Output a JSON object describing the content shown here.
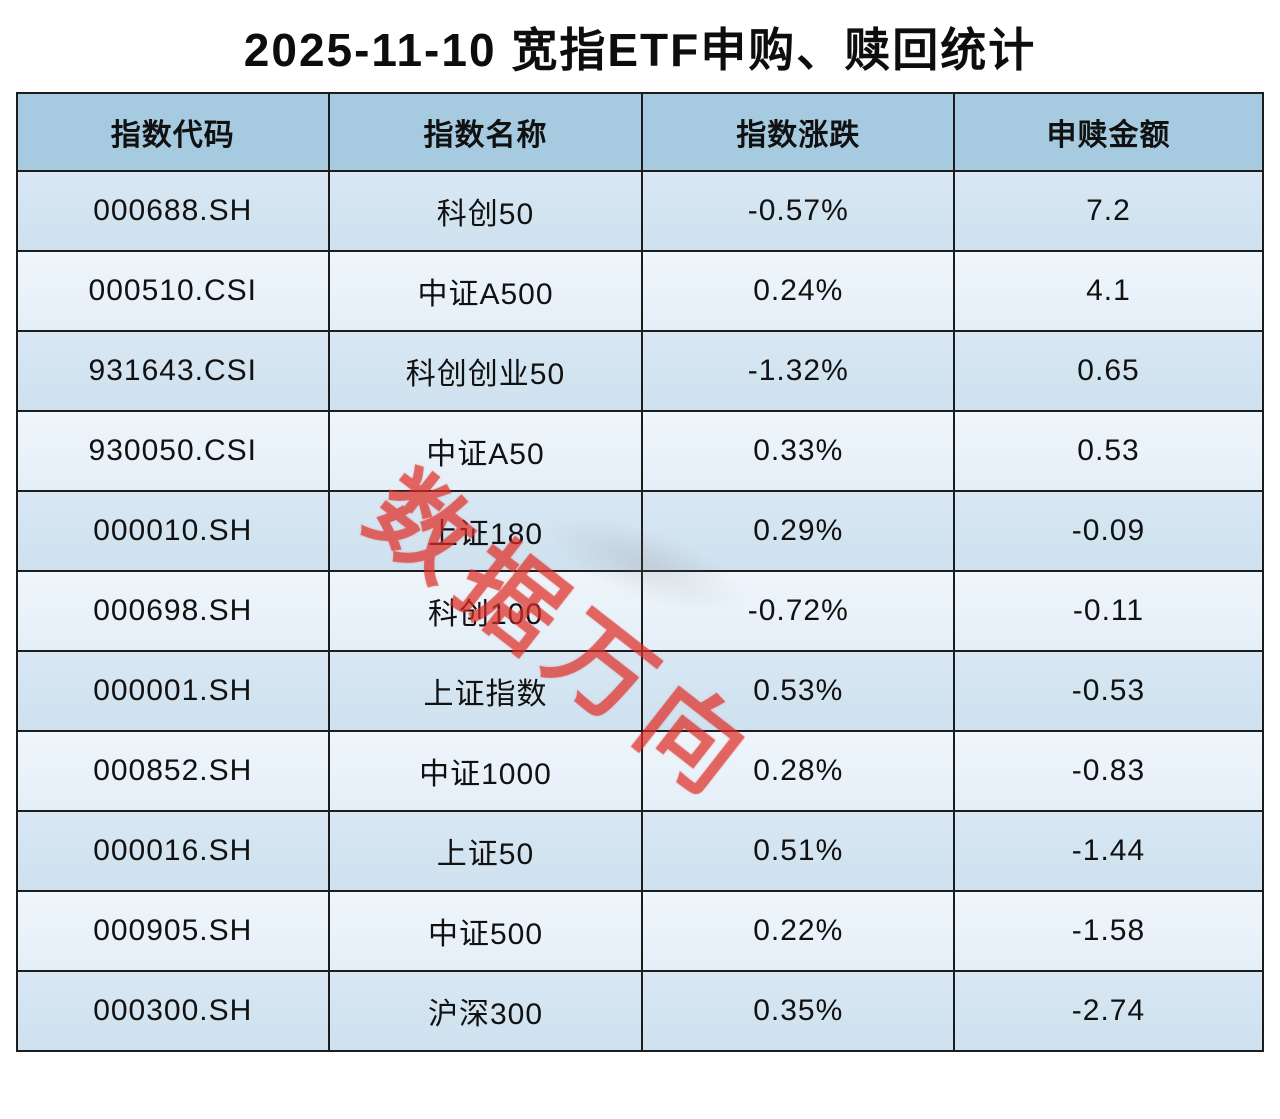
{
  "title": "2025-11-10 宽指ETF申购、赎回统计",
  "watermark": {
    "text": "数据万向",
    "color": "#de2c24"
  },
  "colors": {
    "header_bg": "#a6cbe1",
    "row_dark": "#cfe1ef",
    "row_light": "#e9f3fa",
    "border": "#1c1c1c",
    "watermark_red": "#de2c24"
  },
  "table": {
    "headers": [
      "指数代码",
      "指数名称",
      "指数涨跌",
      "申赎金额"
    ],
    "rows": [
      [
        "000688.SH",
        "科创50",
        "-0.57%",
        "7.2"
      ],
      [
        "000510.CSI",
        "中证A500",
        "0.24%",
        "4.1"
      ],
      [
        "931643.CSI",
        "科创创业50",
        "-1.32%",
        "0.65"
      ],
      [
        "930050.CSI",
        "中证A50",
        "0.33%",
        "0.53"
      ],
      [
        "000010.SH",
        "上证180",
        "0.29%",
        "-0.09"
      ],
      [
        "000698.SH",
        "科创100",
        "-0.72%",
        "-0.11"
      ],
      [
        "000001.SH",
        "上证指数",
        "0.53%",
        "-0.53"
      ],
      [
        "000852.SH",
        "中证1000",
        "0.28%",
        "-0.83"
      ],
      [
        "000016.SH",
        "上证50",
        "0.51%",
        "-1.44"
      ],
      [
        "000905.SH",
        "中证500",
        "0.22%",
        "-1.58"
      ],
      [
        "000300.SH",
        "沪深300",
        "0.35%",
        "-2.74"
      ]
    ]
  },
  "chart_data": {
    "type": "table",
    "title": "2025-11-10 宽指ETF申购、赎回统计",
    "columns": [
      "指数代码",
      "指数名称",
      "指数涨跌",
      "申赎金额"
    ],
    "rows": [
      {
        "code": "000688.SH",
        "name": "科创50",
        "change_pct": -0.57,
        "net_flow": 7.2
      },
      {
        "code": "000510.CSI",
        "name": "中证A500",
        "change_pct": 0.24,
        "net_flow": 4.1
      },
      {
        "code": "931643.CSI",
        "name": "科创创业50",
        "change_pct": -1.32,
        "net_flow": 0.65
      },
      {
        "code": "930050.CSI",
        "name": "中证A50",
        "change_pct": 0.33,
        "net_flow": 0.53
      },
      {
        "code": "000010.SH",
        "name": "上证180",
        "change_pct": 0.29,
        "net_flow": -0.09
      },
      {
        "code": "000698.SH",
        "name": "科创100",
        "change_pct": -0.72,
        "net_flow": -0.11
      },
      {
        "code": "000001.SH",
        "name": "上证指数",
        "change_pct": 0.53,
        "net_flow": -0.53
      },
      {
        "code": "000852.SH",
        "name": "中证1000",
        "change_pct": 0.28,
        "net_flow": -0.83
      },
      {
        "code": "000016.SH",
        "name": "上证50",
        "change_pct": 0.51,
        "net_flow": -1.44
      },
      {
        "code": "000905.SH",
        "name": "中证500",
        "change_pct": 0.22,
        "net_flow": -1.58
      },
      {
        "code": "000300.SH",
        "name": "沪深300",
        "change_pct": 0.35,
        "net_flow": -2.74
      }
    ]
  }
}
